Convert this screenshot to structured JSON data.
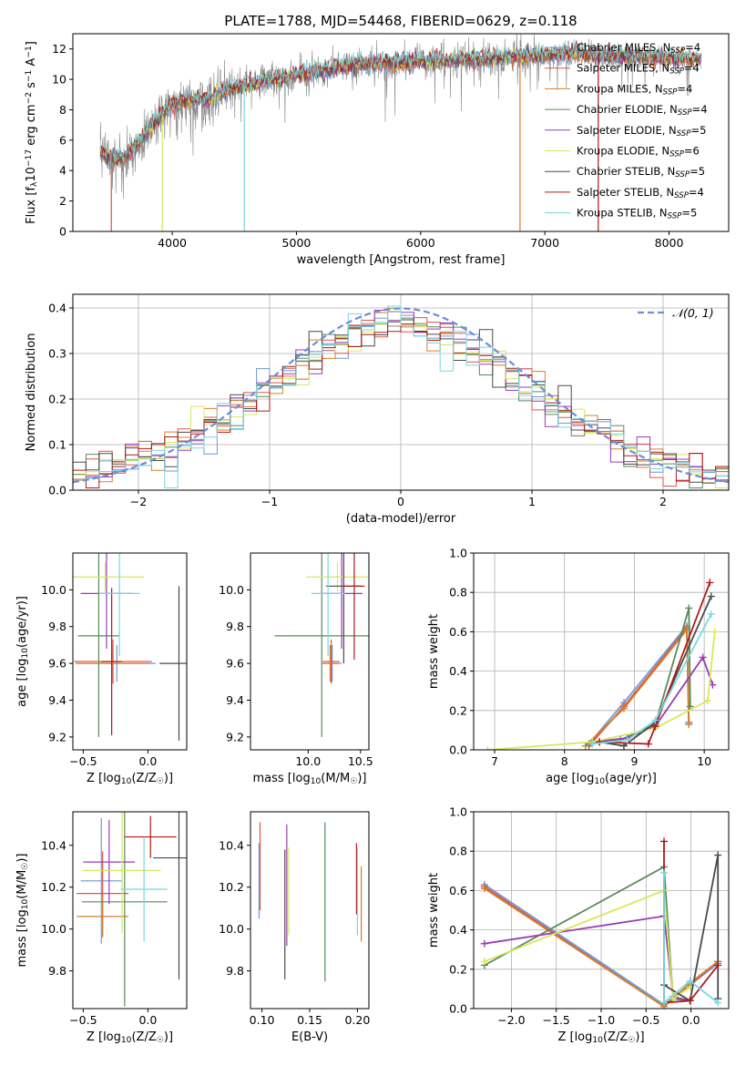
{
  "figure": {
    "suptitle": "PLATE=1788, MJD=54468, FIBERID=0629, z=0.118"
  },
  "colors": {
    "chabrier_miles": "#6a9ad8",
    "salpeter_miles": "#e0524a",
    "kroupa_miles": "#d4802a",
    "chabrier_elodie": "#5a8a5a",
    "salpeter_elodie": "#9a3ab8",
    "kroupa_elodie": "#d8e85a",
    "chabrier_stelib": "#4a4a4a",
    "salpeter_stelib": "#b01818",
    "kroupa_stelib": "#78d8e0",
    "data_spectrum": "#888888",
    "gaussian": "#6a8ed8",
    "grid": "#b0b0b0"
  },
  "chart_data": [
    {
      "id": "spectrum",
      "type": "line",
      "xlabel": "wavelength [Angstrom, rest frame]",
      "ylabel": "Flux [f_λ10^-17 erg cm^-2 s^-1 A^-1]",
      "xlim": [
        3200,
        8480
      ],
      "ylim": [
        0,
        13
      ],
      "xticks": [
        4000,
        5000,
        6000,
        7000,
        8000
      ],
      "yticks": [
        0,
        2,
        4,
        6,
        8,
        10,
        12
      ],
      "grid": false,
      "legend_position": "upper-right",
      "legend": [
        {
          "key": "chabrier_miles",
          "label": "Chabrier MILES, N",
          "sub": "SSP",
          "tail": "=4"
        },
        {
          "key": "salpeter_miles",
          "label": "Salpeter MILES, N",
          "sub": "SSP",
          "tail": "=4"
        },
        {
          "key": "kroupa_miles",
          "label": "Kroupa MILES, N",
          "sub": "SSP",
          "tail": "=4"
        },
        {
          "key": "chabrier_elodie",
          "label": "Chabrier ELODIE, N",
          "sub": "SSP",
          "tail": "=4"
        },
        {
          "key": "salpeter_elodie",
          "label": "Salpeter ELODIE, N",
          "sub": "SSP",
          "tail": "=5"
        },
        {
          "key": "kroupa_elodie",
          "label": "Kroupa ELODIE, N",
          "sub": "SSP",
          "tail": "=6"
        },
        {
          "key": "chabrier_stelib",
          "label": "Chabrier STELIB, N",
          "sub": "SSP",
          "tail": "=5"
        },
        {
          "key": "salpeter_stelib",
          "label": "Salpeter STELIB, N",
          "sub": "SSP",
          "tail": "=4"
        },
        {
          "key": "kroupa_stelib",
          "label": "Kroupa STELIB, N",
          "sub": "SSP",
          "tail": "=5"
        }
      ],
      "continuum": {
        "x": [
          3420,
          3500,
          3600,
          3700,
          3800,
          3900,
          4000,
          4100,
          4200,
          4300,
          4400,
          4600,
          4800,
          5000,
          5200,
          5400,
          5600,
          5800,
          6000,
          6200,
          6400,
          6600,
          6800,
          7000,
          7200,
          7400,
          7600,
          7800,
          8000,
          8200,
          8260
        ],
        "y": [
          5.2,
          4.9,
          4.8,
          5.6,
          6.5,
          7.5,
          8.3,
          8.6,
          8.7,
          8.6,
          9.2,
          9.6,
          10.0,
          10.3,
          10.6,
          10.9,
          11.0,
          11.1,
          11.2,
          11.2,
          11.3,
          11.4,
          11.5,
          11.6,
          11.7,
          11.6,
          11.5,
          11.5,
          11.4,
          11.3,
          11.3
        ]
      },
      "noise_amplitude": 1.1,
      "spikes": [
        {
          "x": 3510,
          "key": "salpeter_miles"
        },
        {
          "x": 3920,
          "key": "kroupa_elodie"
        },
        {
          "x": 4580,
          "key": "kroupa_stelib"
        },
        {
          "x": 6800,
          "key": "kroupa_miles"
        },
        {
          "x": 7430,
          "key": "salpeter_stelib"
        }
      ]
    },
    {
      "id": "residual_hist",
      "type": "histogram",
      "xlabel": "(data-model)/error",
      "ylabel": "Normed distribution",
      "xlim": [
        -2.5,
        2.5
      ],
      "ylim": [
        0,
        0.43
      ],
      "xticks": [
        -2,
        -1,
        0,
        1,
        2
      ],
      "yticks": [
        0.0,
        0.1,
        0.2,
        0.3,
        0.4
      ],
      "grid": true,
      "bin_width": 0.1,
      "legend_label": "𝒩(0, 1)",
      "legend_position": "upper-right",
      "gaussian": {
        "mean": 0,
        "sigma": 1
      }
    },
    {
      "id": "age_vs_Z",
      "type": "errorbar",
      "xlabel": "Z [log10(Z/Z☉)]",
      "ylabel": "age  [log10(age/yr)]",
      "xlim": [
        -0.58,
        0.3
      ],
      "ylim": [
        9.13,
        10.2
      ],
      "xticks": [
        -0.5,
        0.0
      ],
      "yticks": [
        9.2,
        9.4,
        9.6,
        9.8,
        10.0
      ],
      "grid": false,
      "points": [
        {
          "key": "chabrier_miles",
          "x": -0.24,
          "y": 9.6,
          "xe": 0.3,
          "ye": 0.1
        },
        {
          "key": "salpeter_miles",
          "x": -0.27,
          "y": 9.61,
          "xe": 0.3,
          "ye": 0.12
        },
        {
          "key": "kroupa_miles",
          "x": -0.28,
          "y": 9.6,
          "xe": 0.28,
          "ye": 0.1
        },
        {
          "key": "chabrier_elodie",
          "x": -0.38,
          "y": 9.75,
          "xe": 0.16,
          "ye": 0.55
        },
        {
          "key": "salpeter_elodie",
          "x": -0.32,
          "y": 9.98,
          "xe": 0.2,
          "ye": 0.3
        },
        {
          "key": "kroupa_elodie",
          "x": -0.33,
          "y": 10.07,
          "xe": 0.3,
          "ye": 0.08
        },
        {
          "key": "chabrier_stelib",
          "x": 0.24,
          "y": 9.6,
          "xe": 0.15,
          "ye": 0.42
        },
        {
          "key": "salpeter_stelib",
          "x": -0.28,
          "y": 9.61,
          "xe": 0.08,
          "ye": 0.4
        },
        {
          "key": "kroupa_stelib",
          "x": -0.22,
          "y": 9.98,
          "xe": 0.16,
          "ye": 0.34
        }
      ]
    },
    {
      "id": "age_vs_mass",
      "type": "errorbar",
      "xlabel": "mass [log10(M/M☉)]",
      "ylabel": "",
      "xlim": [
        9.45,
        10.58
      ],
      "ylim": [
        9.13,
        10.2
      ],
      "xticks": [
        10.0,
        10.5
      ],
      "yticks": [
        9.2,
        9.4,
        9.6,
        9.8,
        10.0
      ],
      "grid": false,
      "points": [
        {
          "key": "chabrier_miles",
          "x": 10.23,
          "y": 9.6,
          "xe": 0.09,
          "ye": 0.1
        },
        {
          "key": "salpeter_miles",
          "x": 10.22,
          "y": 9.61,
          "xe": 0.08,
          "ye": 0.12
        },
        {
          "key": "kroupa_miles",
          "x": 10.21,
          "y": 9.6,
          "xe": 0.08,
          "ye": 0.1
        },
        {
          "key": "chabrier_elodie",
          "x": 10.13,
          "y": 9.75,
          "xe": 0.45,
          "ye": 0.55
        },
        {
          "key": "salpeter_elodie",
          "x": 10.32,
          "y": 9.98,
          "xe": 0.2,
          "ye": 0.3
        },
        {
          "key": "kroupa_elodie",
          "x": 10.28,
          "y": 10.07,
          "xe": 0.3,
          "ye": 0.08
        },
        {
          "key": "chabrier_stelib",
          "x": 10.34,
          "y": 10.02,
          "xe": 0.17,
          "ye": 0.42
        },
        {
          "key": "salpeter_stelib",
          "x": 10.44,
          "y": 10.02,
          "xe": 0.1,
          "ye": 0.4
        },
        {
          "key": "kroupa_stelib",
          "x": 10.19,
          "y": 9.98,
          "xe": 0.16,
          "ye": 0.34
        }
      ]
    },
    {
      "id": "weight_vs_age",
      "type": "line",
      "xlabel": "age  [log10(age/yr)]",
      "ylabel": "mass weight",
      "xlim": [
        6.7,
        10.35
      ],
      "ylim": [
        0,
        1.0
      ],
      "xticks": [
        7,
        8,
        9,
        10
      ],
      "yticks": [
        0.0,
        0.2,
        0.4,
        0.6,
        0.8,
        1.0
      ],
      "grid": true,
      "series": [
        {
          "key": "chabrier_miles",
          "x": [
            8.35,
            8.85,
            9.75,
            9.78
          ],
          "y": [
            0.03,
            0.24,
            0.63,
            0.14
          ]
        },
        {
          "key": "salpeter_miles",
          "x": [
            8.35,
            8.85,
            9.75,
            9.78
          ],
          "y": [
            0.02,
            0.22,
            0.62,
            0.13
          ]
        },
        {
          "key": "kroupa_miles",
          "x": [
            8.3,
            8.85,
            9.75,
            9.78
          ],
          "y": [
            0.02,
            0.21,
            0.61,
            0.13
          ]
        },
        {
          "key": "chabrier_elodie",
          "x": [
            8.35,
            8.8,
            9.3,
            9.78,
            9.8
          ],
          "y": [
            0.03,
            0.05,
            0.13,
            0.72,
            0.22
          ]
        },
        {
          "key": "salpeter_elodie",
          "x": [
            8.4,
            8.9,
            9.3,
            9.98,
            10.12
          ],
          "y": [
            0.04,
            0.06,
            0.12,
            0.47,
            0.33
          ]
        },
        {
          "key": "kroupa_elodie",
          "x": [
            6.9,
            8.4,
            9.3,
            10.05,
            10.15
          ],
          "y": [
            0.0,
            0.04,
            0.11,
            0.25,
            0.6
          ]
        },
        {
          "key": "chabrier_stelib",
          "x": [
            8.5,
            8.85,
            9.3,
            10.1
          ],
          "y": [
            0.04,
            0.02,
            0.14,
            0.78
          ]
        },
        {
          "key": "salpeter_stelib",
          "x": [
            8.5,
            9.2,
            9.3,
            10.08
          ],
          "y": [
            0.04,
            0.03,
            0.12,
            0.85
          ]
        },
        {
          "key": "kroupa_stelib",
          "x": [
            8.4,
            8.9,
            9.3,
            10.1
          ],
          "y": [
            0.03,
            0.05,
            0.15,
            0.69
          ]
        }
      ]
    },
    {
      "id": "mass_vs_Z",
      "type": "errorbar",
      "xlabel": "Z [log10(Z/Z☉)]",
      "ylabel": "mass [log10(M/M☉)]",
      "xlim": [
        -0.58,
        0.3
      ],
      "ylim": [
        9.62,
        10.56
      ],
      "xticks": [
        -0.5,
        0.0
      ],
      "yticks": [
        9.8,
        10.0,
        10.2,
        10.4
      ],
      "grid": false,
      "points": [
        {
          "key": "chabrier_miles",
          "x": -0.36,
          "y": 10.23,
          "xe": 0.16,
          "ye": 0.3
        },
        {
          "key": "salpeter_miles",
          "x": -0.35,
          "y": 10.17,
          "xe": 0.2,
          "ye": 0.2
        },
        {
          "key": "kroupa_miles",
          "x": -0.35,
          "y": 10.06,
          "xe": 0.2,
          "ye": 0.1
        },
        {
          "key": "chabrier_elodie",
          "x": -0.18,
          "y": 10.13,
          "xe": 0.33,
          "ye": 0.5
        },
        {
          "key": "salpeter_elodie",
          "x": -0.3,
          "y": 10.32,
          "xe": 0.2,
          "ye": 0.2
        },
        {
          "key": "kroupa_elodie",
          "x": -0.2,
          "y": 10.28,
          "xe": 0.3,
          "ye": 0.3
        },
        {
          "key": "chabrier_stelib",
          "x": 0.24,
          "y": 10.34,
          "xe": 0.2,
          "ye": 0.58
        },
        {
          "key": "salpeter_stelib",
          "x": 0.02,
          "y": 10.44,
          "xe": 0.2,
          "ye": 0.1
        },
        {
          "key": "kroupa_stelib",
          "x": -0.03,
          "y": 10.19,
          "xe": 0.18,
          "ye": 0.25
        }
      ]
    },
    {
      "id": "mass_vs_ebv",
      "type": "errorbar",
      "xlabel": "E(B-V)",
      "ylabel": "",
      "xlim": [
        0.088,
        0.212
      ],
      "ylim": [
        9.62,
        10.56
      ],
      "xticks": [
        0.1,
        0.15,
        0.2
      ],
      "yticks": [
        9.8,
        10.0,
        10.2,
        10.4
      ],
      "grid": false,
      "points": [
        {
          "key": "chabrier_miles",
          "x": 0.097,
          "y": 10.23,
          "xe": 0,
          "ye": 0.18
        },
        {
          "key": "salpeter_miles",
          "x": 0.098,
          "y": 10.3,
          "xe": 0,
          "ye": 0.21
        },
        {
          "key": "kroupa_miles",
          "x": 0.204,
          "y": 10.12,
          "xe": 0,
          "ye": 0.18
        },
        {
          "key": "chabrier_elodie",
          "x": 0.166,
          "y": 10.13,
          "xe": 0,
          "ye": 0.38
        },
        {
          "key": "salpeter_elodie",
          "x": 0.126,
          "y": 10.21,
          "xe": 0,
          "ye": 0.29
        },
        {
          "key": "kroupa_elodie",
          "x": 0.128,
          "y": 10.18,
          "xe": 0,
          "ye": 0.21
        },
        {
          "key": "chabrier_stelib",
          "x": 0.124,
          "y": 10.07,
          "xe": 0,
          "ye": 0.31
        },
        {
          "key": "salpeter_stelib",
          "x": 0.199,
          "y": 10.24,
          "xe": 0,
          "ye": 0.17
        },
        {
          "key": "kroupa_stelib",
          "x": 0.2,
          "y": 10.18,
          "xe": 0,
          "ye": 0.21
        }
      ]
    },
    {
      "id": "weight_vs_Z",
      "type": "line",
      "xlabel": "Z [log10(Z/Z☉)]",
      "ylabel": "mass weight",
      "xlim": [
        -2.42,
        0.42
      ],
      "ylim": [
        0,
        1.0
      ],
      "xticks": [
        -2.0,
        -1.5,
        -1.0,
        -0.5,
        0.0
      ],
      "yticks": [
        0.0,
        0.2,
        0.4,
        0.6,
        0.8,
        1.0
      ],
      "grid": true,
      "series": [
        {
          "key": "chabrier_miles",
          "x": [
            -2.3,
            -0.3,
            -0.01,
            0.3
          ],
          "y": [
            0.63,
            0.02,
            0.12,
            0.23
          ]
        },
        {
          "key": "salpeter_miles",
          "x": [
            -2.3,
            -0.3,
            -0.01,
            0.3
          ],
          "y": [
            0.62,
            0.01,
            0.12,
            0.24
          ]
        },
        {
          "key": "kroupa_miles",
          "x": [
            -2.3,
            -0.3,
            -0.01,
            0.3
          ],
          "y": [
            0.61,
            0.01,
            0.13,
            0.24
          ]
        },
        {
          "key": "chabrier_elodie",
          "x": [
            -2.3,
            -0.3,
            -0.2,
            -0.01
          ],
          "y": [
            0.22,
            0.72,
            0.05,
            0.04
          ]
        },
        {
          "key": "salpeter_elodie",
          "x": [
            -2.3,
            -0.3,
            -0.2,
            -0.01
          ],
          "y": [
            0.33,
            0.47,
            0.06,
            0.04
          ]
        },
        {
          "key": "kroupa_elodie",
          "x": [
            -2.3,
            -0.3,
            -0.2,
            -0.01
          ],
          "y": [
            0.24,
            0.6,
            0.05,
            0.11
          ]
        },
        {
          "key": "chabrier_stelib",
          "x": [
            -0.3,
            -0.01,
            0.3,
            0.3
          ],
          "y": [
            0.12,
            0.04,
            0.78,
            0.05
          ]
        },
        {
          "key": "salpeter_stelib",
          "x": [
            -0.3,
            -0.3,
            -0.01,
            0.3
          ],
          "y": [
            0.85,
            0.03,
            0.04,
            0.22
          ]
        },
        {
          "key": "kroupa_stelib",
          "x": [
            -0.3,
            -0.3,
            -0.01,
            0.3
          ],
          "y": [
            0.69,
            0.03,
            0.14,
            0.03
          ]
        }
      ]
    }
  ]
}
